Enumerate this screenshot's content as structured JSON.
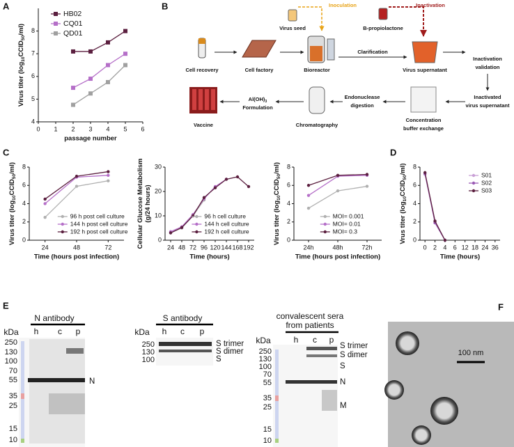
{
  "panel_labels": [
    "A",
    "B",
    "C",
    "D",
    "E",
    "F"
  ],
  "chart_data": [
    {
      "type": "line",
      "marker": "square",
      "legend": "upper-left",
      "y_label": [
        [
          "Virus titer (log",
          "10",
          "CCID",
          "50",
          "/ml)"
        ]
      ],
      "x_label": "passage number",
      "x": [
        2,
        3,
        4,
        5
      ],
      "xlim": [
        0,
        6
      ],
      "xticks": [
        0,
        1,
        2,
        3,
        4,
        5,
        6
      ],
      "ylim": [
        4,
        9
      ],
      "yticks": [
        4,
        5,
        6,
        7,
        8
      ],
      "series": [
        {
          "name": "HB02",
          "color": "#5b1f3f",
          "values": [
            7.1,
            7.1,
            7.5,
            8.0
          ]
        },
        {
          "name": "CQ01",
          "color": "#b56fc8",
          "values": [
            5.5,
            5.9,
            6.5,
            7.0
          ]
        },
        {
          "name": "QD01",
          "color": "#a0a0a0",
          "values": [
            4.75,
            5.25,
            5.75,
            6.5
          ]
        }
      ]
    },
    {
      "type": "line",
      "marker": "circle",
      "legend": "lower-right",
      "y_label": [
        [
          "Virus titer (log",
          "10",
          "CCID",
          "50",
          "/ml)"
        ]
      ],
      "x_label": "Time (hours post infection)",
      "x": [
        24,
        48,
        72
      ],
      "xlim": [
        12,
        84
      ],
      "xticks": [
        24,
        48,
        72
      ],
      "ylim": [
        0,
        8
      ],
      "yticks": [
        0,
        2,
        4,
        6,
        8
      ],
      "series": [
        {
          "name": "96 h post cell culture",
          "color": "#b0b0b0",
          "values": [
            2.5,
            5.9,
            6.5
          ]
        },
        {
          "name": "144 h post cell culture",
          "color": "#b56fc8",
          "values": [
            4.0,
            6.9,
            7.1
          ]
        },
        {
          "name": "192 h post cell culture",
          "color": "#5b1f3f",
          "values": [
            4.5,
            7.0,
            7.5
          ]
        }
      ]
    },
    {
      "type": "line",
      "marker": "circle",
      "legend": "lower-right",
      "y_label": [
        [
          "Cellular Glucose Metabolism"
        ],
        [
          "(g/24 hours)"
        ]
      ],
      "x_label": "Time (hours)",
      "x": [
        24,
        48,
        72,
        96,
        120,
        144,
        168,
        192
      ],
      "xlim": [
        12,
        204
      ],
      "xticks": [
        24,
        48,
        72,
        96,
        120,
        144,
        168,
        192
      ],
      "ylim": [
        0,
        30
      ],
      "yticks": [
        0,
        10,
        20,
        30
      ],
      "series": [
        {
          "name": "96 h cell culture",
          "color": "#b0b0b0",
          "values": [
            3,
            5,
            10,
            16.5,
            null,
            null,
            null,
            null
          ]
        },
        {
          "name": "144 h cell culture",
          "color": "#b56fc8",
          "values": [
            3.5,
            5.5,
            10.5,
            17,
            22,
            25,
            null,
            null
          ]
        },
        {
          "name": "192 h cell culture",
          "color": "#5b1f3f",
          "values": [
            3,
            5.2,
            10,
            17.5,
            21.5,
            25,
            26,
            22
          ]
        }
      ]
    },
    {
      "type": "line",
      "marker": "circle",
      "legend": "lower-right",
      "y_label": [
        [
          "Virus titer (log",
          "10",
          "CCID",
          "50",
          "/ml)"
        ]
      ],
      "x_label": "Time (hours post infection)",
      "categories": [
        "24h",
        "48h",
        "72h"
      ],
      "ylim": [
        0,
        8
      ],
      "yticks": [
        0,
        2,
        4,
        6,
        8
      ],
      "series": [
        {
          "name": "MOI= 0.001",
          "color": "#b0b0b0",
          "values": [
            3.5,
            5.4,
            5.9
          ]
        },
        {
          "name": "MOI= 0.01",
          "color": "#b56fc8",
          "values": [
            4.9,
            7.0,
            7.1
          ]
        },
        {
          "name": "MOI= 0.3",
          "color": "#5b1f3f",
          "values": [
            6.0,
            7.1,
            7.2
          ]
        }
      ]
    },
    {
      "type": "line",
      "marker": "circle",
      "legend": "upper-right",
      "y_label": [
        [
          "Vrus titer  (log",
          "10",
          "CCID",
          "50",
          "/ml)"
        ]
      ],
      "x_label": "Time (hours)",
      "categories": [
        "0",
        "2",
        "4",
        "6",
        "12",
        "18",
        "24",
        "36"
      ],
      "ylim": [
        0,
        8
      ],
      "yticks": [
        0,
        2,
        4,
        6,
        8
      ],
      "series": [
        {
          "name": "S01",
          "color": "#c9a0d6",
          "values": [
            7.2,
            2.0,
            0,
            null,
            null,
            null,
            null,
            null
          ]
        },
        {
          "name": "S02",
          "color": "#9b5bb5",
          "values": [
            7.3,
            1.9,
            0,
            null,
            null,
            null,
            null,
            null
          ]
        },
        {
          "name": "S03",
          "color": "#5b1f3f",
          "values": [
            7.4,
            2.1,
            0,
            null,
            null,
            null,
            null,
            null
          ]
        }
      ]
    }
  ],
  "diagram": {
    "nodes": [
      {
        "lines": [
          [
            "Virus seed"
          ]
        ]
      },
      {
        "lines": [
          [
            "Inoculation"
          ]
        ]
      },
      {
        "lines": [
          [
            "B-propiolactone"
          ]
        ]
      },
      {
        "lines": [
          [
            "Inactivation"
          ]
        ]
      },
      {
        "lines": [
          [
            "Cell recovery"
          ]
        ]
      },
      {
        "lines": [
          [
            "Cell factory"
          ]
        ]
      },
      {
        "lines": [
          [
            "Bioreactor"
          ]
        ]
      },
      {
        "lines": [
          [
            "Clarification"
          ]
        ]
      },
      {
        "lines": [
          [
            "Virus supernatant"
          ]
        ]
      },
      {
        "lines": [
          [
            "Inactivation"
          ],
          [
            "validation"
          ]
        ]
      },
      {
        "lines": [
          [
            "Inactivated"
          ],
          [
            "virus supernatant"
          ]
        ]
      },
      {
        "lines": [
          [
            "Concentration"
          ],
          [
            "buffer exchange"
          ]
        ]
      },
      {
        "lines": [
          [
            "Endonuclease"
          ],
          [
            "digestion"
          ]
        ]
      },
      {
        "lines": [
          [
            "Chromatography"
          ]
        ]
      },
      {
        "lines": [
          [
            "Al(OH)",
            "3"
          ],
          [
            "Formulation"
          ]
        ]
      },
      {
        "lines": [
          [
            "Vaccine"
          ]
        ]
      }
    ]
  },
  "blots": [
    {
      "title": [
        "N antibody"
      ],
      "unit": "kDa",
      "lanes": [
        "h",
        "c",
        "p"
      ],
      "markers": [
        250,
        130,
        100,
        70,
        55,
        35,
        25,
        15,
        10
      ],
      "bands": [
        "N"
      ]
    },
    {
      "title": [
        "S antibody"
      ],
      "unit": "kDa",
      "lanes": [
        "h",
        "c",
        "p"
      ],
      "markers": [
        250,
        130,
        100
      ],
      "bands": [
        "S trimer",
        "S dimer",
        "S"
      ]
    },
    {
      "title": [
        "convalescent sera",
        "from patients"
      ],
      "unit": "kDa",
      "lanes": [
        "h",
        "c",
        "p"
      ],
      "markers": [
        250,
        130,
        100,
        70,
        55,
        35,
        25,
        15,
        10
      ],
      "bands": [
        "S trimer",
        "S dimer",
        "S",
        "N",
        "M"
      ]
    }
  ],
  "micrograph": {
    "scale_bar": "100 nm"
  }
}
